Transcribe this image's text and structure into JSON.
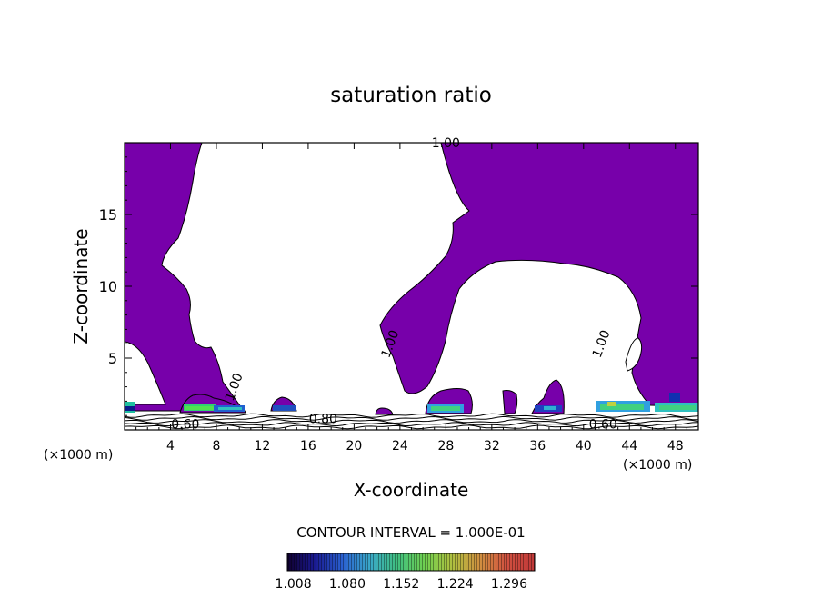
{
  "chart_data": {
    "type": "contour",
    "title": "saturation ratio",
    "xlabel": "X-coordinate",
    "ylabel": "Z-coordinate",
    "x_unit_left": "(×1000 m)",
    "x_unit_right": "(×1000 m)",
    "xlim": [
      0,
      50
    ],
    "ylim": [
      0,
      20
    ],
    "x_ticks": [
      4,
      8,
      12,
      16,
      20,
      24,
      28,
      32,
      36,
      40,
      44,
      48
    ],
    "y_ticks": [
      5,
      10,
      15
    ],
    "contour_interval_text": "CONTOUR INTERVAL = 1.000E-01",
    "contour_labels": [
      {
        "text": "1.00",
        "x": 28.0,
        "z": 20.0
      },
      {
        "text": "1.00",
        "x": 23.1,
        "z": 6.0
      },
      {
        "text": "1.00",
        "x": 41.5,
        "z": 6.0
      },
      {
        "text": "1.00",
        "x": 9.5,
        "z": 3.0
      },
      {
        "text": "0.80",
        "x": 17.3,
        "z": 0.8
      },
      {
        "text": "0.60",
        "x": 5.3,
        "z": 0.4
      },
      {
        "text": "0.60",
        "x": 41.7,
        "z": 0.4
      }
    ],
    "colorbar": {
      "labels": [
        "1.008",
        "1.080",
        "1.152",
        "1.224",
        "1.296"
      ],
      "min": 1.0,
      "max": 1.33,
      "colors": [
        "#100030",
        "#1a1a90",
        "#2a60d0",
        "#3aa8c8",
        "#40c080",
        "#70d050",
        "#b0c040",
        "#d09040",
        "#d05040",
        "#c03838"
      ]
    },
    "fill_color": "#7700aa"
  }
}
